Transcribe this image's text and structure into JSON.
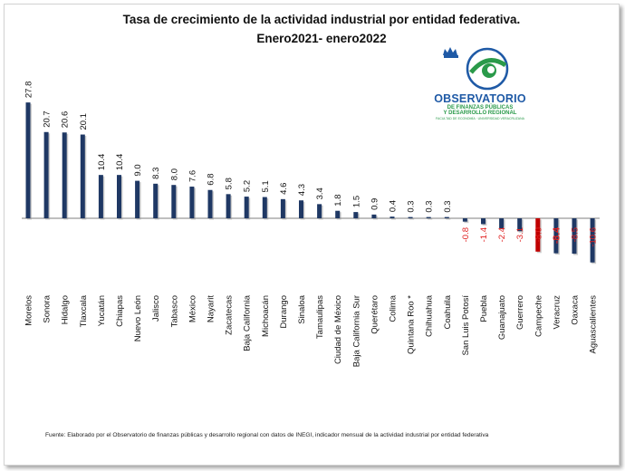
{
  "chart_data": {
    "type": "bar",
    "title_line1": "Tasa de crecimiento de la actividad industrial por entidad federativa.",
    "title_line2": "Enero2021- enero2022",
    "categories": [
      "Morelos",
      "Sonora",
      "Hidalgo",
      "Tlaxcala",
      "Yucatán",
      "Chiapas",
      "Nuevo León",
      "Jalisco",
      "Tabasco",
      "México",
      "Nayarit",
      "Zacatecas",
      "Baja California",
      "Michoacán",
      "Durango",
      "Sinaloa",
      "Tamaulipas",
      "Ciudad de México",
      "Baja California Sur",
      "Querétaro",
      "Colima",
      "Quintana Roo *",
      "Chihuahua",
      "Coahuila",
      "San Luis Potosí",
      "Puebla",
      "Guanajuato",
      "Guerrero",
      "Campeche",
      "Veracruz",
      "Oaxaca",
      "Aguascalientes"
    ],
    "values": [
      27.8,
      20.7,
      20.6,
      20.1,
      10.4,
      10.4,
      9.0,
      8.3,
      8.0,
      7.6,
      6.8,
      5.8,
      5.2,
      5.1,
      4.6,
      4.3,
      3.4,
      1.8,
      1.5,
      0.9,
      0.4,
      0.3,
      0.3,
      0.3,
      -0.8,
      -1.4,
      -2.4,
      -3.1,
      -8.0,
      -8.4,
      -8.5,
      -10.6
    ],
    "value_labels": [
      "27.8",
      "20.7",
      "20.6",
      "20.1",
      "10.4",
      "10.4",
      "9.0",
      "8.3",
      "8.0",
      "7.6",
      "6.8",
      "5.8",
      "5.2",
      "5.1",
      "4.6",
      "4.3",
      "3.4",
      "1.8",
      "1.5",
      "0.9",
      "0.4",
      "0.3",
      "0.3",
      "0.3",
      "-0.8",
      "-1.4",
      "-2.4",
      "-3.1",
      "-8.0",
      "-8.4",
      "-8.5",
      "-10.6"
    ],
    "highlight_category": "Campeche",
    "bold_label_category": "Veracruz",
    "xlabel": "",
    "ylabel": "",
    "ylim": [
      -12,
      30
    ],
    "grid": false,
    "legend": "none",
    "colors": {
      "bar": "#1f3864",
      "highlight": "#c00000",
      "negative_label": "#e02020",
      "positive_label": "#111111"
    }
  },
  "logo": {
    "name": "OBSERVATORIO",
    "sub1": "DE FINANZAS PÚBLICAS",
    "sub2": "Y DESARROLLO REGIONAL",
    "tagline": "FACULTAD DE ECONOMÍA · UNIVERSIDAD VERACRUZANA",
    "colors": {
      "blue": "#1f5aa6",
      "green": "#2a9a4a"
    }
  },
  "source": "Fuente:  Elaborado  por  el  Observatorio  de  finanzas  públicas  y desarrollo  regional  con datos de INEGI,  indicador  mensual  de la actividad  industrial  por entidad  federativa"
}
